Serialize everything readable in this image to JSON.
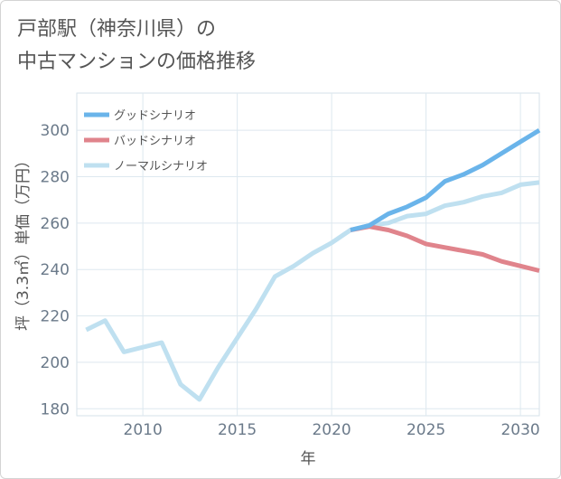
{
  "title_line1": "戸部駅（神奈川県）の",
  "title_line2": "中古マンションの価格推移",
  "chart_data": {
    "type": "line",
    "xlabel": "年",
    "ylabel": "坪（3.3㎡）単価（万円）",
    "xlim": [
      2006.5,
      2031
    ],
    "ylim": [
      177,
      316
    ],
    "xticks": [
      2010,
      2015,
      2020,
      2025,
      2030
    ],
    "yticks": [
      180,
      200,
      220,
      240,
      260,
      280,
      300
    ],
    "grid": true,
    "legend_position": "top-left",
    "series": [
      {
        "name": "グッドシナリオ",
        "color": "#6ab4ea",
        "x": [
          2021,
          2022,
          2023,
          2024,
          2025,
          2026,
          2027,
          2028,
          2029,
          2030,
          2031
        ],
        "y": [
          257,
          259,
          264,
          267,
          271,
          278,
          281,
          285,
          290,
          295,
          300
        ]
      },
      {
        "name": "バッドシナリオ",
        "color": "#e0848c",
        "x": [
          2021,
          2022,
          2023,
          2024,
          2025,
          2026,
          2027,
          2028,
          2029,
          2030,
          2031
        ],
        "y": [
          257,
          258.5,
          257,
          254.5,
          251,
          249.5,
          248,
          246.5,
          243.5,
          241.5,
          239.5
        ]
      },
      {
        "name": "ノーマルシナリオ",
        "color": "#bfe0f0",
        "x": [
          2007,
          2008,
          2009,
          2010,
          2011,
          2012,
          2013,
          2014,
          2015,
          2016,
          2017,
          2018,
          2019,
          2020,
          2021,
          2022,
          2023,
          2024,
          2025,
          2026,
          2027,
          2028,
          2029,
          2030,
          2031
        ],
        "y": [
          214,
          218,
          204.5,
          206.5,
          208.5,
          190.5,
          184,
          198,
          210.5,
          223,
          237,
          241.5,
          247,
          251.5,
          257,
          259,
          260,
          263,
          264,
          267.5,
          269,
          271.5,
          273,
          276.5,
          277.5
        ]
      }
    ]
  }
}
